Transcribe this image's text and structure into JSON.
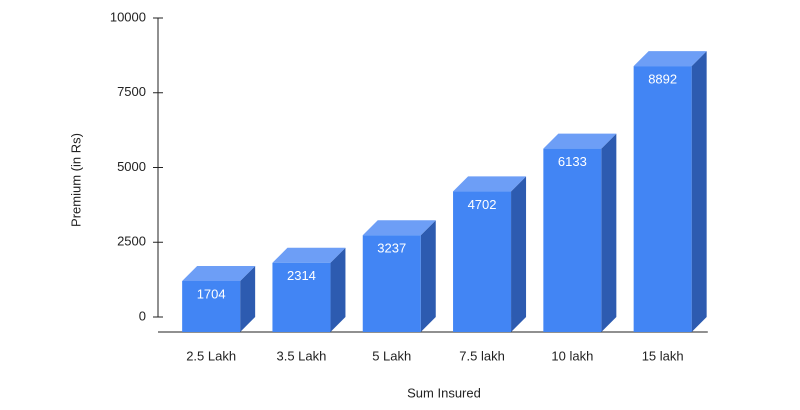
{
  "chart_data": {
    "type": "bar3d",
    "x_label": "Sum Insured",
    "y_label": "Premium (in Rs)",
    "categories": [
      "2.5 Lakh",
      "3.5 Lakh",
      "5 Lakh",
      "7.5 lakh",
      "10 lakh",
      "15 lakh"
    ],
    "values": [
      1704,
      2314,
      3237,
      4702,
      6133,
      8892
    ],
    "color": "#4285f4",
    "ylim": [
      0,
      10000
    ],
    "yticks": [
      0,
      2500,
      5000,
      7500,
      10000
    ],
    "grid": false
  }
}
